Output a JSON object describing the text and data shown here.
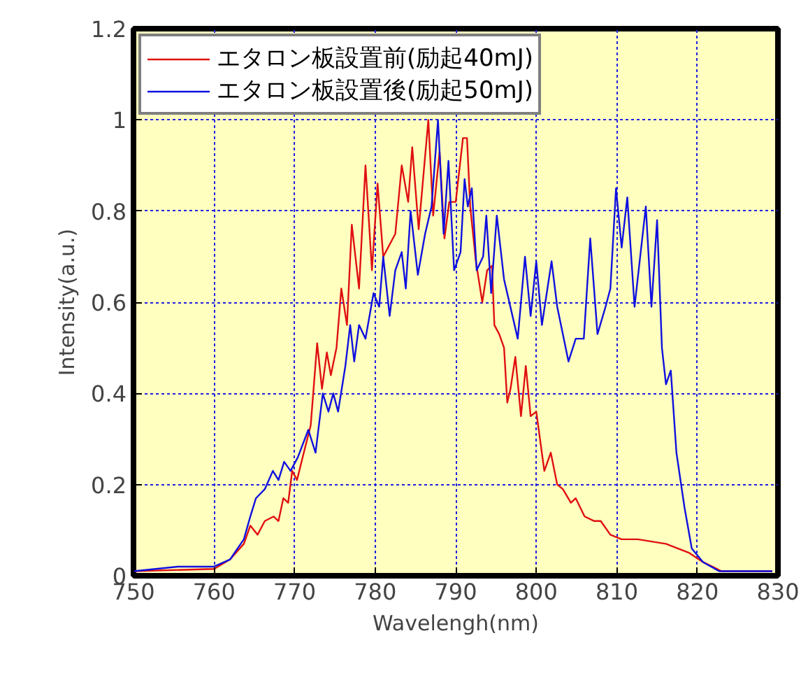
{
  "chart_data": {
    "type": "line",
    "xlabel": "Wavelengh(nm)",
    "ylabel": "Intensity(a.u.)",
    "xlim": [
      750,
      830
    ],
    "ylim": [
      0,
      1.2
    ],
    "xticks": [
      750,
      760,
      770,
      780,
      790,
      800,
      810,
      820,
      830
    ],
    "yticks": [
      0,
      0.2,
      0.4,
      0.6,
      0.8,
      1,
      1.2
    ],
    "grid": true,
    "legend": "top left",
    "marker": "none",
    "line_style": "solid",
    "series": [
      {
        "name": "エタロン板設置前(励起40mJ)",
        "color": "#e01010",
        "x": [
          750,
          760,
          762,
          763.7,
          764.5,
          765.4,
          766.3,
          767.4,
          768,
          768.6,
          769.2,
          769.7,
          770.3,
          771,
          772,
          772.8,
          773.4,
          774,
          774.5,
          775.2,
          775.8,
          776.5,
          777.1,
          778,
          778.8,
          779.6,
          780.3,
          781,
          782.5,
          783.3,
          784.1,
          784.6,
          785.4,
          786.6,
          787.2,
          788,
          788.6,
          789.2,
          790,
          790.9,
          791.4,
          791.8,
          792.5,
          793.3,
          793.9,
          794.5,
          794.8,
          795.4,
          796,
          796.4,
          796.8,
          797.4,
          798.1,
          798.7,
          799.3,
          800,
          801,
          801.8,
          802.6,
          803.3,
          804.3,
          804.9,
          806,
          807.2,
          808,
          809.2,
          810.6,
          812.6,
          816.1,
          819,
          820.7,
          823,
          829.3
        ],
        "values": [
          0.01,
          0.015,
          0.036,
          0.07,
          0.11,
          0.09,
          0.12,
          0.13,
          0.12,
          0.17,
          0.16,
          0.23,
          0.21,
          0.26,
          0.33,
          0.51,
          0.41,
          0.49,
          0.44,
          0.5,
          0.63,
          0.55,
          0.77,
          0.63,
          0.9,
          0.67,
          0.86,
          0.7,
          0.75,
          0.9,
          0.82,
          0.94,
          0.76,
          1.0,
          0.79,
          0.93,
          0.74,
          0.82,
          0.82,
          0.96,
          0.96,
          0.81,
          0.69,
          0.6,
          0.67,
          0.68,
          0.55,
          0.53,
          0.5,
          0.38,
          0.41,
          0.48,
          0.35,
          0.46,
          0.35,
          0.36,
          0.23,
          0.27,
          0.2,
          0.19,
          0.16,
          0.17,
          0.13,
          0.12,
          0.12,
          0.09,
          0.08,
          0.08,
          0.07,
          0.05,
          0.03,
          0.01,
          0.01
        ]
      },
      {
        "name": "エタロン板設置後(励起50mJ)",
        "color": "#1010e0",
        "x": [
          750,
          755.5,
          760,
          762,
          763.7,
          764.5,
          765.2,
          766.3,
          767.3,
          768,
          768.7,
          769.5,
          770.4,
          771.7,
          772.6,
          773.5,
          774.2,
          774.8,
          775.4,
          776.3,
          776.9,
          777.4,
          778,
          778.8,
          779.8,
          780.5,
          781,
          781.8,
          782.5,
          783.3,
          783.8,
          784.4,
          785.3,
          786.2,
          787,
          787.8,
          788.5,
          789.1,
          789.8,
          790.6,
          791.1,
          791.5,
          792,
          792.6,
          793.4,
          793.8,
          794.4,
          795.1,
          796,
          797.7,
          798.6,
          799.3,
          800,
          800.7,
          801.9,
          802.6,
          804,
          804.9,
          805.9,
          806.7,
          807.6,
          808.6,
          809.2,
          809.9,
          810.6,
          811.3,
          812.2,
          813.6,
          814.3,
          815,
          815.6,
          816.1,
          816.7,
          817.4,
          818.4,
          819.3,
          820.7,
          822.7,
          829.3
        ],
        "values": [
          0.01,
          0.02,
          0.02,
          0.036,
          0.08,
          0.13,
          0.17,
          0.19,
          0.23,
          0.21,
          0.25,
          0.23,
          0.26,
          0.32,
          0.27,
          0.4,
          0.36,
          0.4,
          0.36,
          0.46,
          0.55,
          0.47,
          0.55,
          0.52,
          0.62,
          0.59,
          0.7,
          0.57,
          0.67,
          0.71,
          0.63,
          0.8,
          0.66,
          0.75,
          0.81,
          1.0,
          0.75,
          0.91,
          0.67,
          0.71,
          0.87,
          0.81,
          0.85,
          0.67,
          0.7,
          0.79,
          0.62,
          0.79,
          0.65,
          0.52,
          0.7,
          0.57,
          0.69,
          0.55,
          0.69,
          0.59,
          0.47,
          0.52,
          0.52,
          0.74,
          0.53,
          0.59,
          0.63,
          0.85,
          0.72,
          0.83,
          0.59,
          0.81,
          0.59,
          0.78,
          0.5,
          0.42,
          0.45,
          0.27,
          0.15,
          0.06,
          0.03,
          0.01,
          0.01
        ]
      }
    ]
  }
}
